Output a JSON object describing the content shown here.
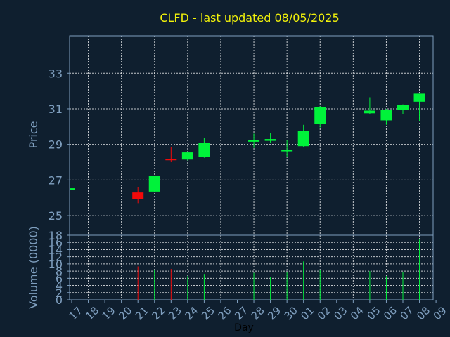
{
  "chart_data": {
    "type": "candlestick",
    "title": "CLFD - last updated 08/05/2025",
    "xlabel": "Day",
    "colors": {
      "background": "#0f1f2f",
      "title": "#f2f20a",
      "axis_text": "#7f9fbf",
      "grid": "#ffffff",
      "up": "#00f23a",
      "down": "#f20a0a"
    },
    "price_panel": {
      "ylabel": "Price",
      "ylim": [
        23.9,
        35.1
      ],
      "yticks": [
        25,
        27,
        29,
        31,
        33
      ],
      "ytick_labels": [
        "25",
        "27",
        "29",
        "31",
        "33"
      ]
    },
    "volume_panel": {
      "ylabel": "Volume (0000)",
      "ylim": [
        0,
        18
      ],
      "yticks": [
        0,
        2,
        4,
        6,
        8,
        10,
        12,
        14,
        16,
        18
      ],
      "ytick_labels": [
        "0",
        "2",
        "4",
        "6",
        "8",
        "10",
        "12",
        "14",
        "16",
        "18"
      ]
    },
    "x_tick_labels": [
      "17",
      "18",
      "19",
      "20",
      "21",
      "22",
      "23",
      "24",
      "25",
      "26",
      "27",
      "28",
      "29",
      "30",
      "01",
      "02",
      "03",
      "04",
      "05",
      "06",
      "07",
      "08",
      "09"
    ],
    "series": [
      {
        "day": "17",
        "index": 0,
        "open": 26.5,
        "high": 26.5,
        "low": 26.5,
        "close": 26.5,
        "volume": 0.3
      },
      {
        "day": "21",
        "index": 4,
        "open": 26.3,
        "high": 26.6,
        "low": 25.7,
        "close": 25.95,
        "volume": 9.3
      },
      {
        "day": "22",
        "index": 5,
        "open": 26.35,
        "high": 27.25,
        "low": 26.35,
        "close": 27.25,
        "volume": 8.3
      },
      {
        "day": "23",
        "index": 6,
        "open": 28.15,
        "high": 28.85,
        "low": 28.0,
        "close": 28.1,
        "volume": 8.6
      },
      {
        "day": "24",
        "index": 7,
        "open": 28.15,
        "high": 28.6,
        "low": 28.1,
        "close": 28.55,
        "volume": 6.6
      },
      {
        "day": "25",
        "index": 8,
        "open": 28.3,
        "high": 29.35,
        "low": 28.25,
        "close": 29.1,
        "volume": 7.2
      },
      {
        "day": "28",
        "index": 11,
        "open": 29.15,
        "high": 29.6,
        "low": 28.8,
        "close": 29.25,
        "volume": 7.5
      },
      {
        "day": "29",
        "index": 12,
        "open": 29.2,
        "high": 29.65,
        "low": 29.1,
        "close": 29.3,
        "volume": 6.3
      },
      {
        "day": "30",
        "index": 13,
        "open": 28.6,
        "high": 29.25,
        "low": 28.3,
        "close": 28.65,
        "volume": 7.8
      },
      {
        "day": "01",
        "index": 14,
        "open": 28.9,
        "high": 30.1,
        "low": 28.85,
        "close": 29.75,
        "volume": 10.7
      },
      {
        "day": "02",
        "index": 15,
        "open": 30.15,
        "high": 31.15,
        "low": 29.95,
        "close": 31.1,
        "volume": 8.3
      },
      {
        "day": "05",
        "index": 18,
        "open": 30.75,
        "high": 31.65,
        "low": 30.7,
        "close": 30.9,
        "volume": 8.0
      },
      {
        "day": "06",
        "index": 19,
        "open": 30.35,
        "high": 31.0,
        "low": 30.1,
        "close": 30.95,
        "volume": 6.6
      },
      {
        "day": "07",
        "index": 20,
        "open": 30.95,
        "high": 31.25,
        "low": 30.7,
        "close": 31.2,
        "volume": 7.8
      },
      {
        "day": "08",
        "index": 21,
        "open": 31.4,
        "high": 31.85,
        "low": 30.3,
        "close": 31.85,
        "volume": 16.8
      }
    ]
  }
}
